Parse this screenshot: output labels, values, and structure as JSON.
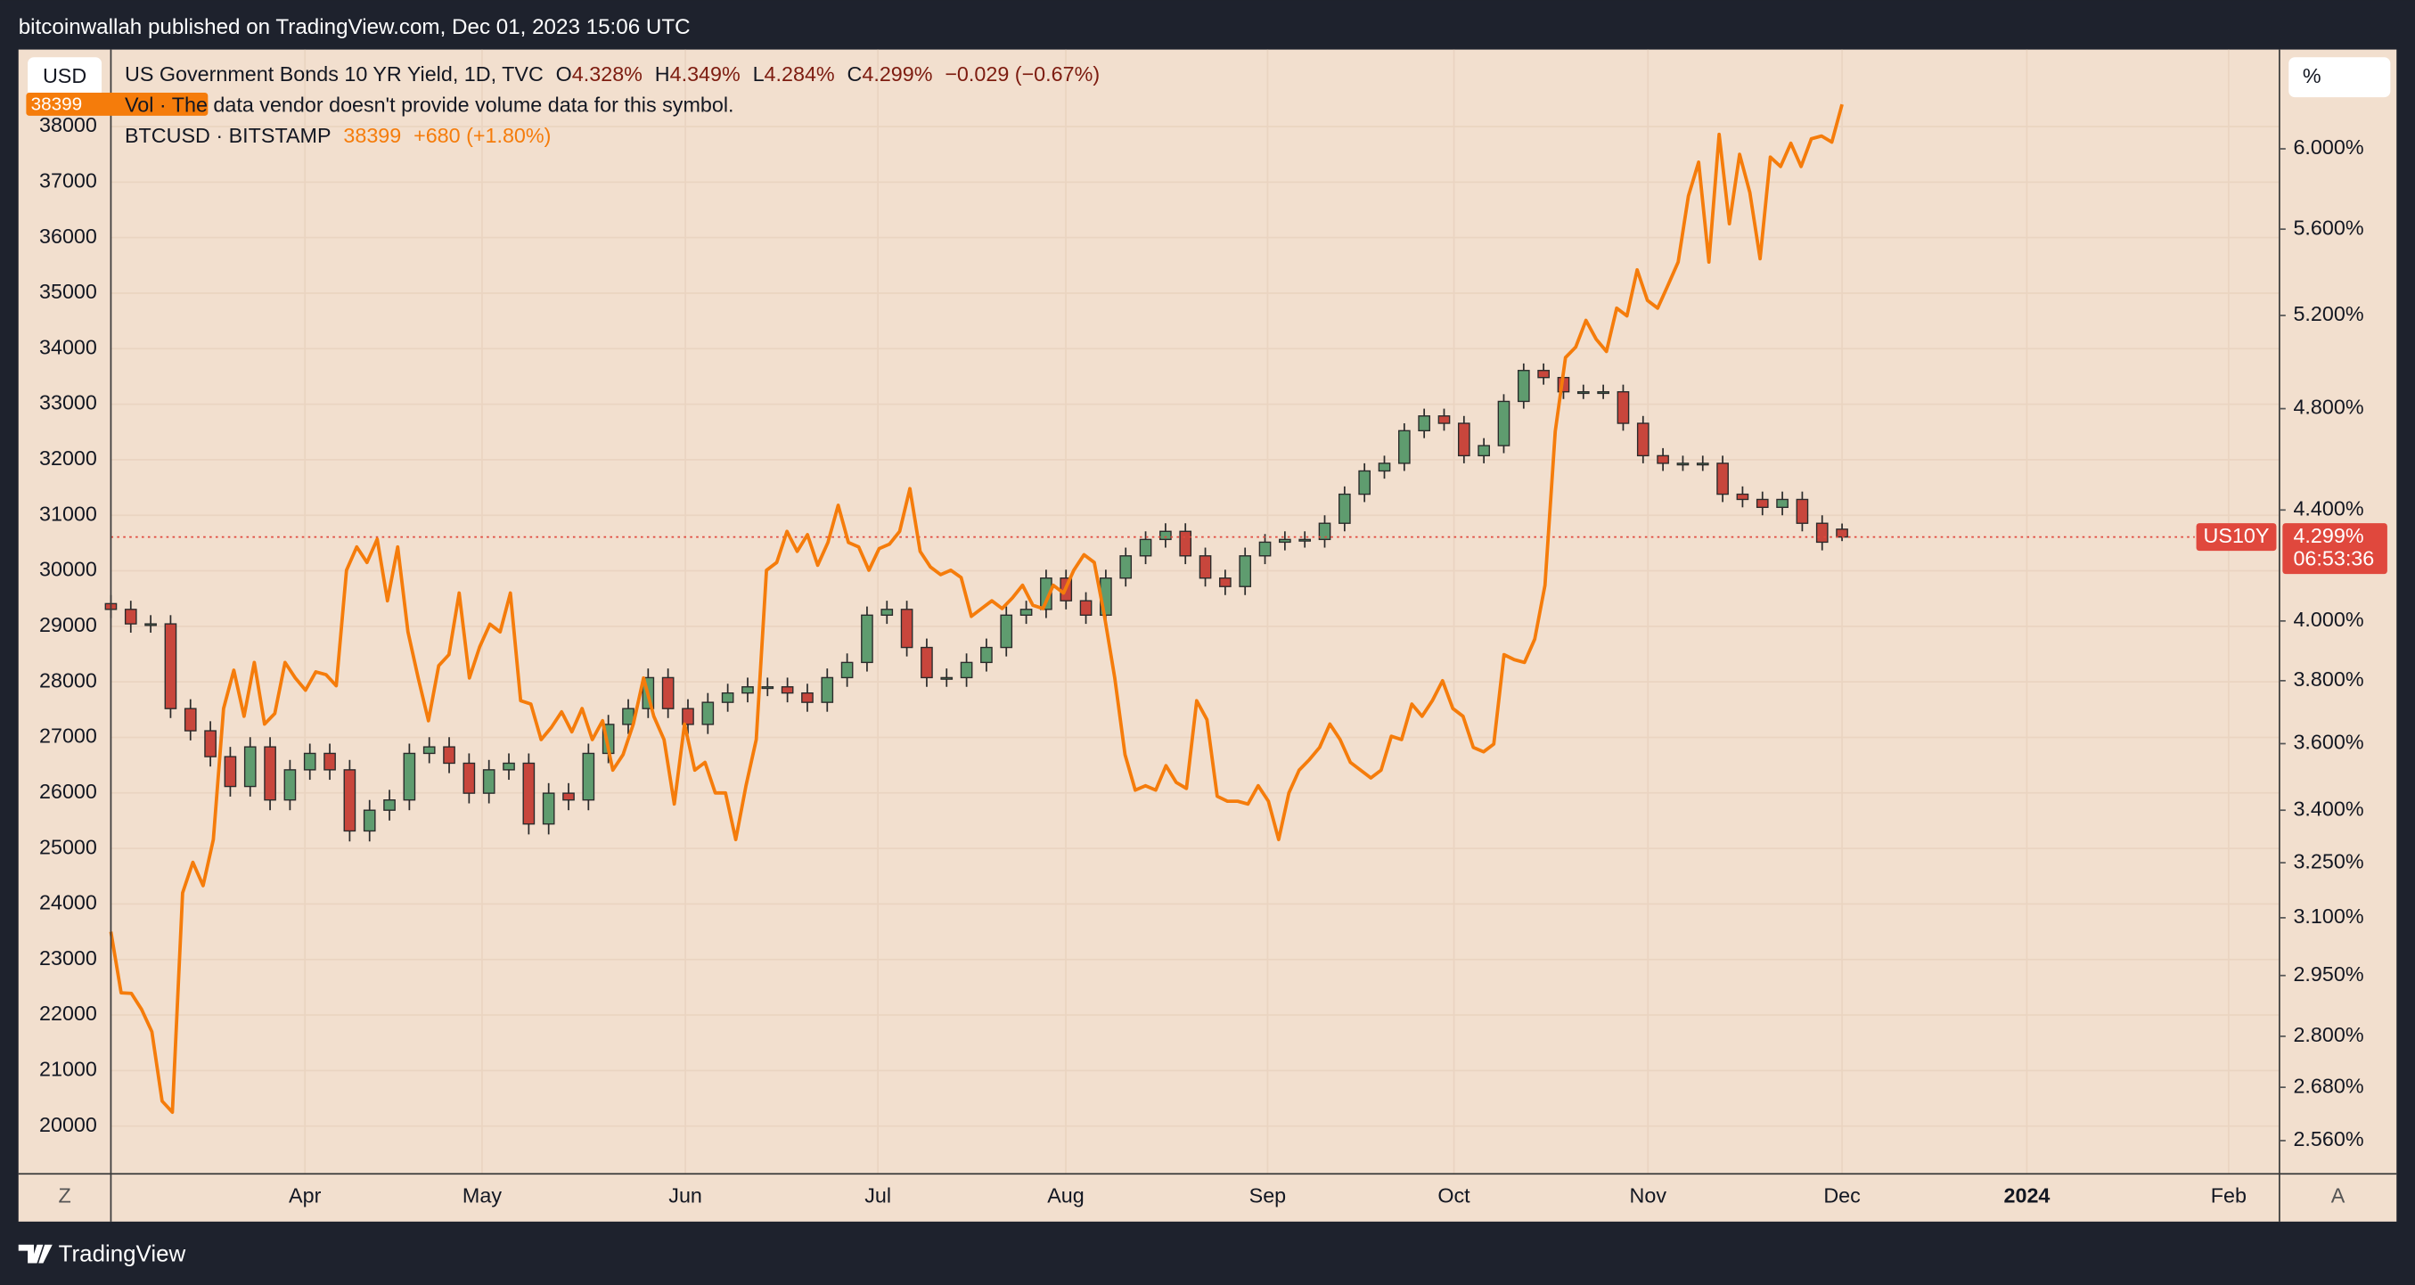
{
  "header": {
    "publisher": "bitcoinwallah published on TradingView.com, Dec 01, 2023 15:06 UTC"
  },
  "footer": {
    "brand": "TradingView"
  },
  "chart_data": {
    "type": "candlestick",
    "left_axis_button": "USD",
    "right_axis_button": "%",
    "scale_buttons": [
      "Z",
      "A"
    ],
    "volume_note": "Vol · The data vendor doesn't provide volume data for this symbol.",
    "x_labels": [
      "Apr",
      "May",
      "Jun",
      "Jul",
      "Aug",
      "Sep",
      "Oct",
      "Nov",
      "Dec",
      "2024",
      "Feb"
    ],
    "ylim": [
      19140,
      39387
    ],
    "yticks": [
      20000,
      21000,
      22000,
      23000,
      24000,
      25000,
      26000,
      27000,
      28000,
      29000,
      30000,
      31000,
      32000,
      33000,
      34000,
      35000,
      36000,
      37000,
      38000
    ],
    "y2lim": [
      2.488,
      6.534
    ],
    "y2log": true,
    "y2ticks": [
      {
        "value": 6,
        "label": "6.000%"
      },
      {
        "value": 5.6,
        "label": "5.600%"
      },
      {
        "value": 5.2,
        "label": "5.200%"
      },
      {
        "value": 4.8,
        "label": "4.800%"
      },
      {
        "value": 4.4,
        "label": "4.400%"
      },
      {
        "value": 4,
        "label": "4.000%"
      },
      {
        "value": 3.8,
        "label": "3.800%"
      },
      {
        "value": 3.6,
        "label": "3.600%"
      },
      {
        "value": 3.4,
        "label": "3.400%"
      },
      {
        "value": 3.25,
        "label": "3.250%"
      },
      {
        "value": 3.1,
        "label": "3.100%"
      },
      {
        "value": 2.95,
        "label": "2.950%"
      },
      {
        "value": 2.8,
        "label": "2.800%"
      },
      {
        "value": 2.68,
        "label": "2.680%"
      },
      {
        "value": 2.56,
        "label": "2.560%"
      }
    ],
    "grid": true,
    "series": [
      {
        "name": "US Government Bonds 10 YR Yield, 1D, TVC",
        "type": "candlestick",
        "axis": "y2",
        "symbol": "US10Y",
        "up_color": "#5f9c6f",
        "down_color": "#c8463c",
        "price_color": "#e0483d",
        "stats": [
          {
            "key": "O",
            "text": "4.328%"
          },
          {
            "key": "H",
            "text": "4.349%"
          },
          {
            "key": "L",
            "text": "4.284%"
          },
          {
            "key": "C",
            "text": "4.299%"
          }
        ],
        "change": "−0.029 (−0.67%)",
        "price_label": "4.299%",
        "countdown": "06:53:36",
        "ohlc": [
          [
            4.06,
            4.09,
            4.01,
            4.04
          ],
          [
            4.04,
            4.07,
            3.96,
            3.99
          ],
          [
            3.99,
            4.02,
            3.96,
            3.99
          ],
          [
            3.99,
            4.02,
            3.68,
            3.71
          ],
          [
            3.71,
            3.74,
            3.61,
            3.64
          ],
          [
            3.64,
            3.67,
            3.53,
            3.56
          ],
          [
            3.56,
            3.59,
            3.44,
            3.47
          ],
          [
            3.47,
            3.62,
            3.44,
            3.59
          ],
          [
            3.59,
            3.62,
            3.4,
            3.43
          ],
          [
            3.43,
            3.55,
            3.4,
            3.52
          ],
          [
            3.52,
            3.6,
            3.49,
            3.57
          ],
          [
            3.57,
            3.6,
            3.49,
            3.52
          ],
          [
            3.52,
            3.55,
            3.31,
            3.34
          ],
          [
            3.34,
            3.43,
            3.31,
            3.4
          ],
          [
            3.4,
            3.46,
            3.37,
            3.43
          ],
          [
            3.43,
            3.6,
            3.4,
            3.57
          ],
          [
            3.57,
            3.62,
            3.54,
            3.59
          ],
          [
            3.59,
            3.62,
            3.51,
            3.54
          ],
          [
            3.54,
            3.57,
            3.42,
            3.45
          ],
          [
            3.45,
            3.55,
            3.42,
            3.52
          ],
          [
            3.52,
            3.57,
            3.49,
            3.54
          ],
          [
            3.54,
            3.57,
            3.33,
            3.36
          ],
          [
            3.36,
            3.48,
            3.33,
            3.45
          ],
          [
            3.45,
            3.48,
            3.4,
            3.43
          ],
          [
            3.43,
            3.6,
            3.4,
            3.57
          ],
          [
            3.57,
            3.69,
            3.54,
            3.66
          ],
          [
            3.66,
            3.74,
            3.63,
            3.71
          ],
          [
            3.71,
            3.84,
            3.68,
            3.81
          ],
          [
            3.81,
            3.84,
            3.68,
            3.71
          ],
          [
            3.71,
            3.74,
            3.63,
            3.66
          ],
          [
            3.66,
            3.76,
            3.63,
            3.73
          ],
          [
            3.73,
            3.79,
            3.7,
            3.76
          ],
          [
            3.76,
            3.81,
            3.73,
            3.78
          ],
          [
            3.78,
            3.81,
            3.75,
            3.78
          ],
          [
            3.78,
            3.81,
            3.73,
            3.76
          ],
          [
            3.76,
            3.79,
            3.7,
            3.73
          ],
          [
            3.73,
            3.84,
            3.7,
            3.81
          ],
          [
            3.81,
            3.89,
            3.78,
            3.86
          ],
          [
            3.86,
            4.05,
            3.83,
            4.02
          ],
          [
            4.02,
            4.07,
            3.99,
            4.04
          ],
          [
            4.04,
            4.07,
            3.88,
            3.91
          ],
          [
            3.91,
            3.94,
            3.78,
            3.81
          ],
          [
            3.81,
            3.84,
            3.78,
            3.81
          ],
          [
            3.81,
            3.89,
            3.78,
            3.86
          ],
          [
            3.86,
            3.94,
            3.83,
            3.91
          ],
          [
            3.91,
            4.05,
            3.88,
            4.02
          ],
          [
            4.02,
            4.07,
            3.99,
            4.04
          ],
          [
            4.04,
            4.18,
            4.01,
            4.15
          ],
          [
            4.15,
            4.18,
            4.04,
            4.07
          ],
          [
            4.07,
            4.1,
            3.99,
            4.02
          ],
          [
            4.02,
            4.18,
            3.99,
            4.15
          ],
          [
            4.15,
            4.26,
            4.12,
            4.23
          ],
          [
            4.23,
            4.32,
            4.2,
            4.29
          ],
          [
            4.29,
            4.35,
            4.26,
            4.32
          ],
          [
            4.32,
            4.35,
            4.2,
            4.23
          ],
          [
            4.23,
            4.26,
            4.12,
            4.15
          ],
          [
            4.15,
            4.18,
            4.09,
            4.12
          ],
          [
            4.12,
            4.26,
            4.09,
            4.23
          ],
          [
            4.23,
            4.31,
            4.2,
            4.28
          ],
          [
            4.28,
            4.32,
            4.25,
            4.29
          ],
          [
            4.29,
            4.32,
            4.26,
            4.29
          ],
          [
            4.29,
            4.38,
            4.26,
            4.35
          ],
          [
            4.35,
            4.49,
            4.32,
            4.46
          ],
          [
            4.46,
            4.58,
            4.43,
            4.55
          ],
          [
            4.55,
            4.61,
            4.52,
            4.58
          ],
          [
            4.58,
            4.74,
            4.55,
            4.71
          ],
          [
            4.71,
            4.8,
            4.68,
            4.77
          ],
          [
            4.77,
            4.8,
            4.71,
            4.74
          ],
          [
            4.74,
            4.77,
            4.58,
            4.61
          ],
          [
            4.61,
            4.68,
            4.58,
            4.65
          ],
          [
            4.65,
            4.86,
            4.62,
            4.83
          ],
          [
            4.83,
            4.99,
            4.8,
            4.96
          ],
          [
            4.96,
            4.99,
            4.9,
            4.93
          ],
          [
            4.93,
            4.96,
            4.84,
            4.87
          ],
          [
            4.87,
            4.9,
            4.84,
            4.87
          ],
          [
            4.87,
            4.9,
            4.84,
            4.87
          ],
          [
            4.87,
            4.9,
            4.71,
            4.74
          ],
          [
            4.74,
            4.77,
            4.58,
            4.61
          ],
          [
            4.61,
            4.64,
            4.55,
            4.58
          ],
          [
            4.58,
            4.61,
            4.55,
            4.58
          ],
          [
            4.58,
            4.61,
            4.55,
            4.58
          ],
          [
            4.58,
            4.61,
            4.43,
            4.46
          ],
          [
            4.46,
            4.49,
            4.41,
            4.44
          ],
          [
            4.44,
            4.47,
            4.38,
            4.41
          ],
          [
            4.41,
            4.47,
            4.38,
            4.44
          ],
          [
            4.44,
            4.47,
            4.32,
            4.35
          ],
          [
            4.35,
            4.38,
            4.25,
            4.28
          ],
          [
            4.328,
            4.349,
            4.284,
            4.299
          ]
        ]
      },
      {
        "name": "BTCUSD · BITSTAMP",
        "type": "line",
        "color": "#f57c0b",
        "last": "38399",
        "change": "+680 (+1.80%)",
        "values": [
          23500,
          22400,
          22390,
          22100,
          21700,
          20450,
          20250,
          24200,
          24750,
          24330,
          25160,
          27520,
          28210,
          27380,
          28350,
          27240,
          27430,
          28350,
          28070,
          27850,
          28180,
          28130,
          27930,
          30010,
          30430,
          30150,
          30570,
          29460,
          30430,
          28900,
          28070,
          27300,
          28290,
          28490,
          29600,
          28070,
          28630,
          29040,
          28900,
          29600,
          27660,
          27600,
          26960,
          27180,
          27460,
          27100,
          27520,
          26960,
          27300,
          26410,
          26690,
          27240,
          28070,
          27380,
          26960,
          25800,
          27240,
          26410,
          26550,
          26000,
          26000,
          25160,
          26130,
          26960,
          30010,
          30150,
          30710,
          30350,
          30650,
          30100,
          30510,
          31180,
          30510,
          30430,
          30010,
          30400,
          30480,
          30710,
          31480,
          30350,
          30070,
          29930,
          30010,
          29880,
          29180,
          29320,
          29460,
          29320,
          29510,
          29740,
          29380,
          29320,
          29740,
          29600,
          30010,
          30290,
          30150,
          29180,
          28070,
          26690,
          26050,
          26130,
          26050,
          26490,
          26190,
          26080,
          27660,
          27320,
          25940,
          25850,
          25850,
          25800,
          26130,
          25850,
          25160,
          26000,
          26410,
          26600,
          26820,
          27240,
          26960,
          26550,
          26410,
          26270,
          26410,
          27020,
          26960,
          27600,
          27380,
          27660,
          28020,
          27520,
          27380,
          26820,
          26740,
          26880,
          28490,
          28400,
          28350,
          28770,
          29740,
          32510,
          33840,
          34030,
          34510,
          34170,
          33950,
          34730,
          34590,
          35420,
          34870,
          34730,
          35140,
          35560,
          36750,
          37360,
          35560,
          37860,
          36250,
          37500,
          36810,
          35620,
          37450,
          37280,
          37700,
          37280,
          37780,
          37830,
          37720,
          38399
        ]
      }
    ]
  }
}
